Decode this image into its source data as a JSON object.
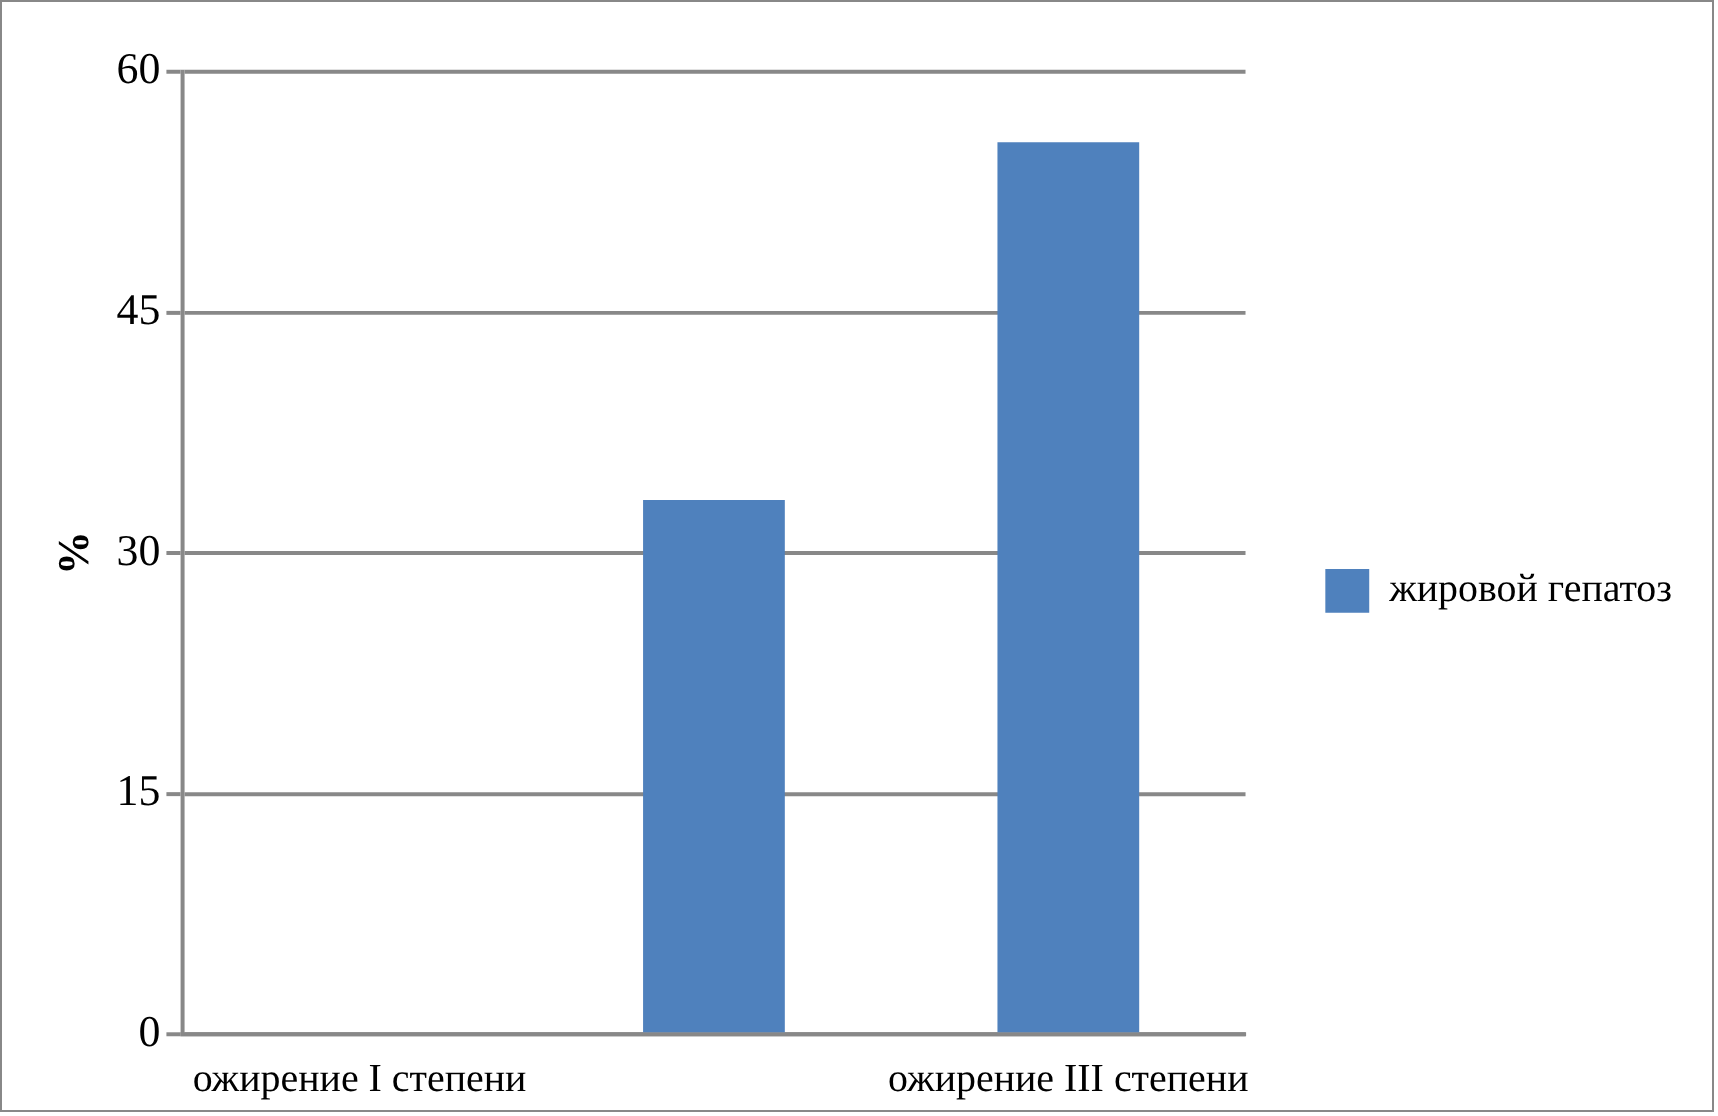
{
  "chart_data": {
    "type": "bar",
    "ylabel": "%",
    "categories": [
      "ожирение I степени",
      null,
      "ожирение III степени"
    ],
    "series": [
      {
        "name": "жировой гепатоз",
        "color": "#4f81bd",
        "values": [
          0,
          33.3,
          55.6
        ]
      }
    ],
    "ylim": [
      0,
      60
    ],
    "yticks": [
      0,
      15,
      30,
      45,
      60
    ],
    "grid": "y",
    "legend": "right"
  }
}
